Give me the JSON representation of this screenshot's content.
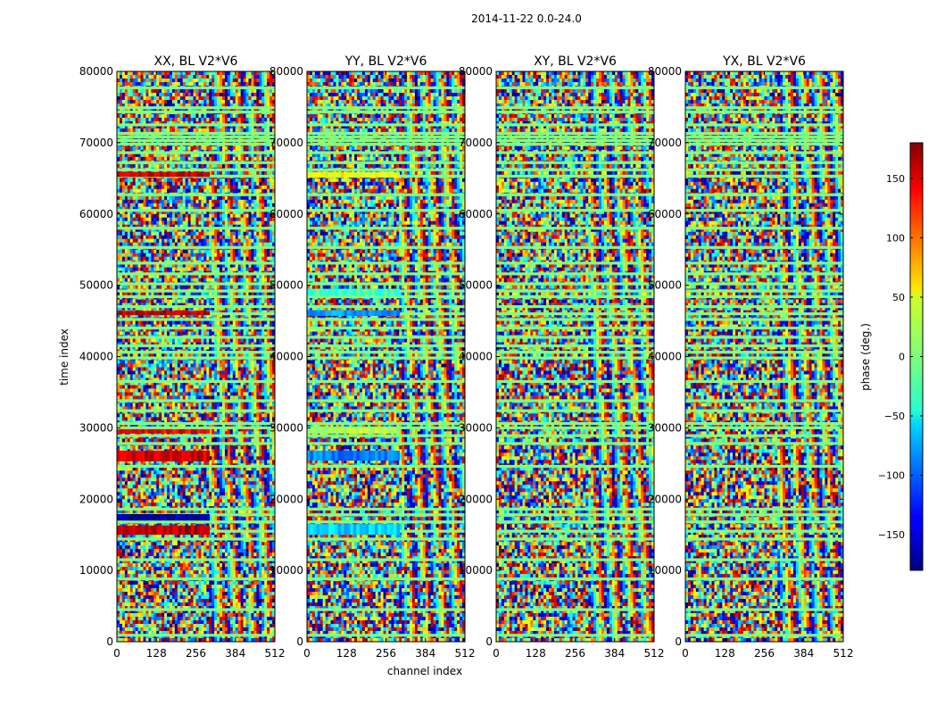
{
  "suptitle": "2014-11-22 0.0-24.0",
  "chart_data": {
    "type": "heatmap",
    "suptitle": "2014-11-22 0.0-24.0",
    "xlabel": "channel index",
    "ylabel": "time index",
    "xlim": [
      0,
      512
    ],
    "ylim": [
      0,
      80000
    ],
    "xticks": [
      0,
      128,
      256,
      384,
      512
    ],
    "yticks": [
      0,
      10000,
      20000,
      30000,
      40000,
      50000,
      60000,
      70000,
      80000
    ],
    "colormap": "jet",
    "colorbar": {
      "label": "phase (deg.)",
      "range": [
        -180,
        180
      ],
      "ticks": [
        -150,
        -100,
        -50,
        0,
        50,
        100,
        150
      ],
      "tick_labels": [
        "−150",
        "−100",
        "−50",
        "0",
        "50",
        "100",
        "150"
      ]
    },
    "panels": [
      {
        "title": "XX, BL V2*V6"
      },
      {
        "title": "YY, BL V2*V6"
      },
      {
        "title": "XY, BL V2*V6"
      },
      {
        "title": "YX, BL V2*V6"
      }
    ],
    "flagged_time_rows": [
      900,
      4500,
      8800,
      11500,
      14400,
      15500,
      16800,
      17800,
      18600,
      24600,
      27800,
      28900,
      30000,
      30600,
      32400,
      33800,
      36500,
      39800,
      40600,
      41500,
      42700,
      44000,
      45200,
      46000,
      47000,
      48400,
      49200,
      50200,
      51600,
      53100,
      55300,
      58000,
      60500,
      62700,
      65300,
      66200,
      67200,
      68600,
      69800,
      70300,
      70800,
      71300,
      72500,
      74300,
      74900,
      77700
    ],
    "fringe_bands": [
      {
        "panel": "XX",
        "time_range": [
          25300,
          26800
        ],
        "channel_range": [
          0,
          300
        ],
        "phase": 150
      },
      {
        "panel": "XX",
        "time_range": [
          15000,
          16300
        ],
        "channel_range": [
          0,
          300
        ],
        "phase": 160
      },
      {
        "panel": "XX",
        "time_range": [
          17000,
          17900
        ],
        "channel_range": [
          0,
          300
        ],
        "phase": -170
      },
      {
        "panel": "XX",
        "time_range": [
          29200,
          29800
        ],
        "channel_range": [
          0,
          300
        ],
        "phase": 140
      },
      {
        "panel": "XX",
        "time_range": [
          45800,
          46400
        ],
        "channel_range": [
          0,
          300
        ],
        "phase": 160
      },
      {
        "panel": "XX",
        "time_range": [
          65200,
          65900
        ],
        "channel_range": [
          0,
          300
        ],
        "phase": 150
      },
      {
        "panel": "YY",
        "time_range": [
          25400,
          26800
        ],
        "channel_range": [
          0,
          300
        ],
        "phase": -90
      },
      {
        "panel": "YY",
        "time_range": [
          15000,
          16500
        ],
        "channel_range": [
          0,
          300
        ],
        "phase": -60
      },
      {
        "panel": "YY",
        "time_range": [
          29200,
          30000
        ],
        "channel_range": [
          0,
          300
        ],
        "phase": 20
      },
      {
        "panel": "YY",
        "time_range": [
          65100,
          65900
        ],
        "channel_range": [
          0,
          300
        ],
        "phase": 45
      },
      {
        "panel": "YY",
        "time_range": [
          48500,
          49500
        ],
        "channel_range": [
          0,
          300
        ],
        "phase": -20
      },
      {
        "panel": "YY",
        "time_range": [
          45700,
          46500
        ],
        "channel_range": [
          0,
          300
        ],
        "phase": -80
      }
    ]
  }
}
